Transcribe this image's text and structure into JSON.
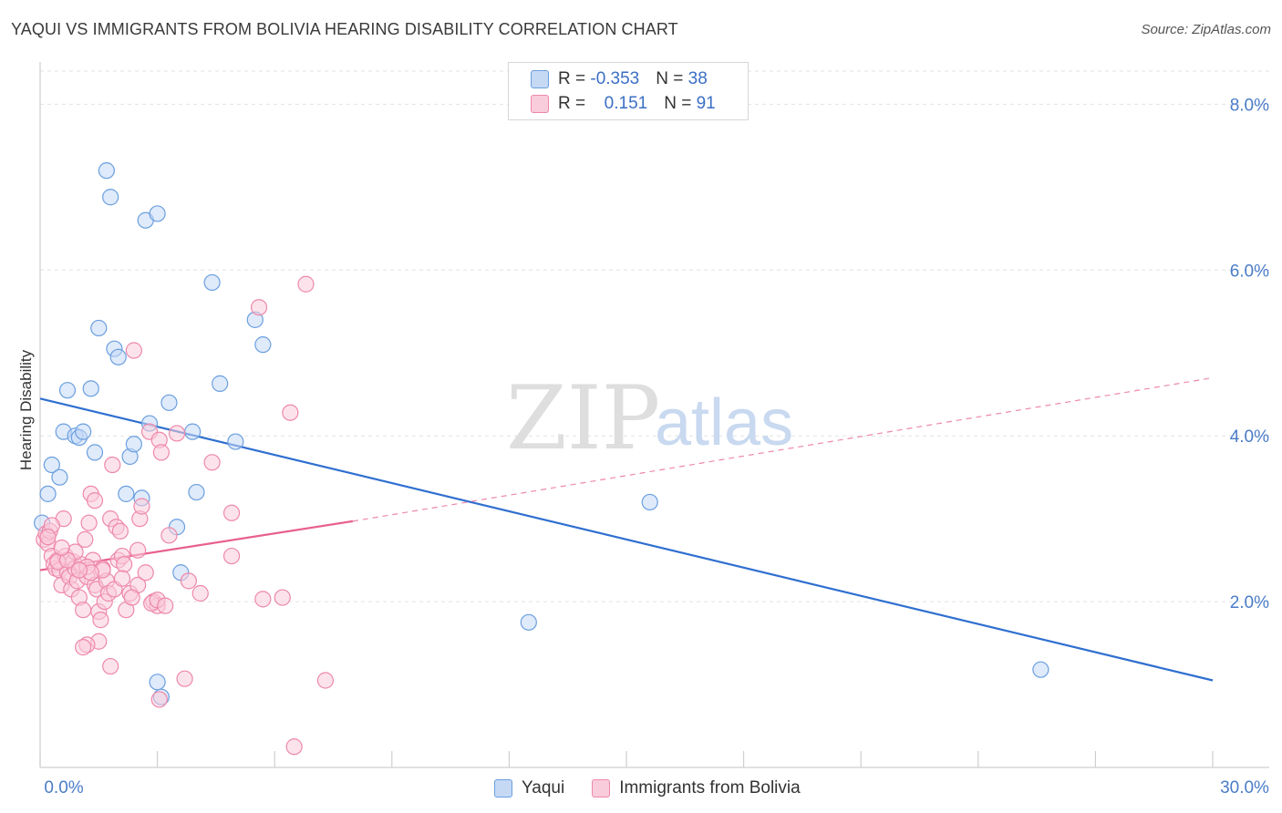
{
  "header": {
    "title": "YAQUI VS IMMIGRANTS FROM BOLIVIA HEARING DISABILITY CORRELATION CHART",
    "source": "Source: ZipAtlas.com"
  },
  "watermark": {
    "zip": "ZIP",
    "atlas": "atlas"
  },
  "legend": {
    "rows": [
      {
        "r_label": "R = ",
        "r_value": "-0.353",
        "n_label": "N = ",
        "n_value": "38",
        "color": "#6a9fe0",
        "fill": "#c5d9f5"
      },
      {
        "r_label": "R = ",
        "r_value": " 0.151",
        "n_label": "N = ",
        "n_value": "91",
        "color": "#ee88aa",
        "fill": "#f9ccdb"
      }
    ]
  },
  "bottom_legend": {
    "items": [
      {
        "label": "Yaqui"
      },
      {
        "label": "Immigrants from Bolivia"
      }
    ]
  },
  "chart_data": {
    "type": "scatter",
    "title": "YAQUI VS IMMIGRANTS FROM BOLIVIA HEARING DISABILITY CORRELATION CHART",
    "xlabel": "",
    "ylabel": "Hearing Disability",
    "xlim": [
      0,
      30
    ],
    "ylim": [
      0,
      8.4
    ],
    "x_tick_labels": [
      "0.0%",
      "30.0%"
    ],
    "y_ticks": [
      2,
      4,
      6,
      8
    ],
    "y_tick_labels": [
      "2.0%",
      "4.0%",
      "6.0%",
      "8.0%"
    ],
    "grid": true,
    "series": [
      {
        "name": "Yaqui",
        "color": "#6a9fe0",
        "fill": "#c5d9f5",
        "line_color": "#2f6fd0",
        "trend": {
          "x0": 0,
          "y0": 4.45,
          "x1": 30,
          "y1": 1.05
        },
        "points": [
          [
            0.2,
            3.3
          ],
          [
            0.3,
            3.65
          ],
          [
            0.5,
            3.5
          ],
          [
            0.6,
            4.05
          ],
          [
            0.7,
            4.55
          ],
          [
            0.9,
            4.0
          ],
          [
            1.0,
            3.98
          ],
          [
            1.1,
            4.05
          ],
          [
            1.3,
            4.57
          ],
          [
            1.4,
            3.8
          ],
          [
            1.5,
            5.3
          ],
          [
            1.7,
            7.2
          ],
          [
            1.8,
            6.88
          ],
          [
            1.9,
            5.05
          ],
          [
            2.0,
            4.95
          ],
          [
            2.2,
            3.3
          ],
          [
            2.3,
            3.75
          ],
          [
            2.4,
            3.9
          ],
          [
            2.6,
            3.25
          ],
          [
            2.7,
            6.6
          ],
          [
            2.8,
            4.15
          ],
          [
            3.0,
            6.68
          ],
          [
            3.3,
            4.4
          ],
          [
            3.5,
            2.9
          ],
          [
            3.6,
            2.35
          ],
          [
            3.9,
            4.05
          ],
          [
            4.0,
            3.32
          ],
          [
            4.4,
            5.85
          ],
          [
            4.6,
            4.63
          ],
          [
            5.0,
            3.93
          ],
          [
            5.5,
            5.4
          ],
          [
            5.7,
            5.1
          ],
          [
            3.0,
            1.03
          ],
          [
            3.1,
            0.85
          ],
          [
            12.5,
            1.75
          ],
          [
            15.6,
            3.2
          ],
          [
            25.6,
            1.18
          ],
          [
            0.05,
            2.95
          ]
        ]
      },
      {
        "name": "Immigrants from Bolivia",
        "color": "#ee88aa",
        "fill": "#f9ccdb",
        "line_color": "#e8608c",
        "trend": {
          "x0": 0,
          "y0": 2.38,
          "x1": 8,
          "y1": 2.97
        },
        "trend_dashed": {
          "x0": 8,
          "y0": 2.97,
          "x1": 30,
          "y1": 4.7
        },
        "points": [
          [
            0.1,
            2.75
          ],
          [
            0.15,
            2.82
          ],
          [
            0.2,
            2.7
          ],
          [
            0.25,
            2.85
          ],
          [
            0.3,
            2.55
          ],
          [
            0.35,
            2.45
          ],
          [
            0.4,
            2.4
          ],
          [
            0.45,
            2.5
          ],
          [
            0.5,
            2.38
          ],
          [
            0.55,
            2.2
          ],
          [
            0.6,
            3.0
          ],
          [
            0.65,
            2.55
          ],
          [
            0.7,
            2.35
          ],
          [
            0.75,
            2.3
          ],
          [
            0.8,
            2.15
          ],
          [
            0.85,
            2.48
          ],
          [
            0.9,
            2.4
          ],
          [
            0.95,
            2.25
          ],
          [
            1.0,
            2.05
          ],
          [
            1.05,
            2.45
          ],
          [
            1.1,
            1.9
          ],
          [
            1.15,
            2.75
          ],
          [
            1.2,
            2.3
          ],
          [
            1.25,
            2.95
          ],
          [
            1.3,
            3.3
          ],
          [
            1.35,
            2.5
          ],
          [
            1.4,
            2.2
          ],
          [
            1.45,
            2.15
          ],
          [
            1.5,
            1.88
          ],
          [
            1.55,
            1.78
          ],
          [
            1.6,
            2.4
          ],
          [
            1.65,
            2.0
          ],
          [
            1.7,
            2.25
          ],
          [
            1.75,
            2.1
          ],
          [
            1.8,
            3.0
          ],
          [
            1.85,
            3.65
          ],
          [
            1.9,
            2.15
          ],
          [
            1.95,
            2.9
          ],
          [
            2.0,
            2.5
          ],
          [
            2.05,
            2.85
          ],
          [
            2.1,
            2.55
          ],
          [
            2.15,
            2.45
          ],
          [
            2.2,
            1.9
          ],
          [
            2.3,
            2.1
          ],
          [
            2.4,
            5.03
          ],
          [
            2.5,
            2.2
          ],
          [
            2.55,
            3.0
          ],
          [
            2.6,
            3.15
          ],
          [
            2.7,
            2.35
          ],
          [
            2.8,
            4.05
          ],
          [
            2.9,
            2.0
          ],
          [
            3.0,
            1.95
          ],
          [
            3.05,
            3.95
          ],
          [
            3.1,
            3.8
          ],
          [
            3.3,
            2.8
          ],
          [
            3.5,
            4.03
          ],
          [
            3.8,
            2.25
          ],
          [
            4.1,
            2.1
          ],
          [
            4.4,
            3.68
          ],
          [
            4.9,
            3.07
          ],
          [
            4.9,
            2.55
          ],
          [
            5.6,
            5.55
          ],
          [
            5.7,
            2.03
          ],
          [
            6.2,
            2.05
          ],
          [
            6.4,
            4.28
          ],
          [
            6.8,
            5.83
          ],
          [
            7.3,
            1.05
          ],
          [
            6.5,
            0.25
          ],
          [
            1.5,
            1.52
          ],
          [
            1.2,
            1.48
          ],
          [
            1.1,
            1.45
          ],
          [
            1.8,
            1.22
          ],
          [
            3.7,
            1.07
          ],
          [
            3.05,
            0.82
          ],
          [
            0.9,
            2.6
          ],
          [
            1.2,
            2.42
          ],
          [
            1.6,
            2.38
          ],
          [
            2.35,
            2.05
          ],
          [
            0.3,
            2.92
          ],
          [
            0.2,
            2.78
          ],
          [
            0.45,
            2.48
          ],
          [
            2.85,
            1.98
          ],
          [
            3.0,
            2.02
          ],
          [
            1.3,
            2.35
          ],
          [
            2.1,
            2.28
          ],
          [
            2.5,
            2.62
          ],
          [
            0.7,
            2.5
          ],
          [
            1.0,
            2.38
          ],
          [
            3.2,
            1.95
          ],
          [
            0.55,
            2.65
          ],
          [
            1.4,
            3.22
          ]
        ]
      }
    ]
  }
}
